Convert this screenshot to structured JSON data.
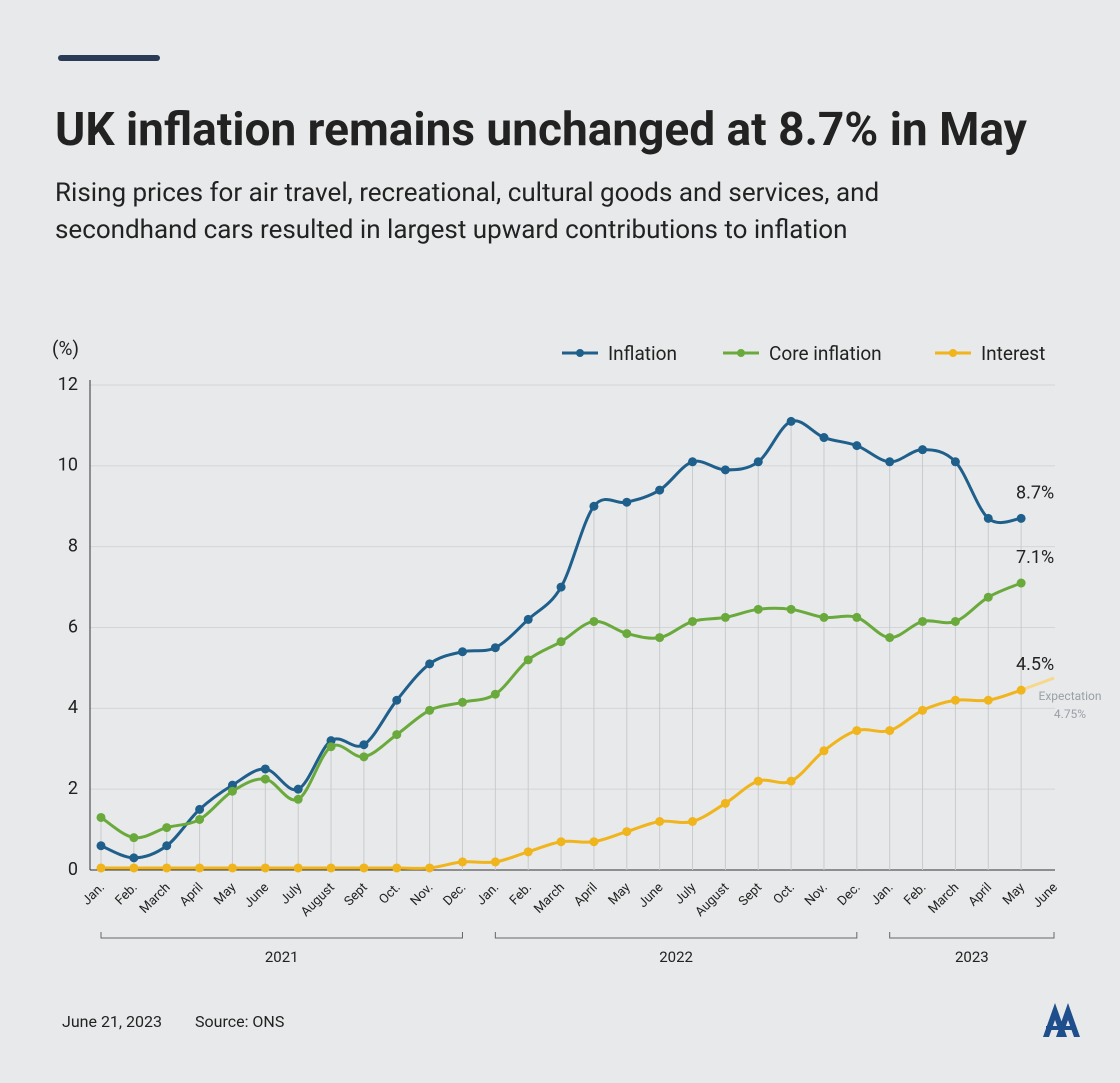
{
  "chart_data": {
    "type": "line",
    "title": "UK inflation remains unchanged at 8.7% in May",
    "subtitle": [
      "Rising prices for air travel, recreational, cultural goods and services, and",
      "secondhand cars resulted in largest upward contributions to inflation"
    ],
    "y_label": "(%)",
    "categories": [
      "Jan.",
      "Feb.",
      "March",
      "April",
      "May",
      "June",
      "July",
      "August",
      "Sept",
      "Oct.",
      "Nov.",
      "Dec.",
      "Jan.",
      "Feb.",
      "March",
      "April",
      "May",
      "June",
      "July",
      "August",
      "Sept",
      "Oct.",
      "Nov.",
      "Dec.",
      "Jan.",
      "Feb.",
      "March",
      "April",
      "May",
      "June"
    ],
    "x_groups": [
      "2021",
      "2022",
      "2023"
    ],
    "series": [
      {
        "name": "Inflation",
        "color": "#1f5f8b",
        "values": [
          0.6,
          0.3,
          0.6,
          1.5,
          2.1,
          2.5,
          2.0,
          3.2,
          3.1,
          4.2,
          5.1,
          5.4,
          5.5,
          6.2,
          7.0,
          9.0,
          9.1,
          9.4,
          10.1,
          9.9,
          10.1,
          11.1,
          10.7,
          10.5,
          10.1,
          10.4,
          10.1,
          8.7,
          8.7,
          null
        ],
        "value_labels": [
          null,
          null,
          null,
          null,
          null,
          null,
          null,
          null,
          null,
          null,
          null,
          null,
          null,
          null,
          null,
          null,
          null,
          null,
          null,
          null,
          null,
          null,
          null,
          null,
          null,
          null,
          null,
          null,
          "8.7%",
          null
        ]
      },
      {
        "name": "Core inflation",
        "color": "#6aaa3c",
        "values": [
          1.3,
          0.8,
          1.05,
          1.25,
          1.95,
          2.25,
          1.75,
          3.05,
          2.8,
          3.35,
          3.95,
          4.15,
          4.35,
          5.2,
          5.65,
          6.15,
          5.85,
          5.75,
          6.15,
          6.25,
          6.45,
          6.45,
          6.25,
          6.25,
          5.75,
          6.15,
          6.15,
          6.75,
          7.1,
          null
        ],
        "value_labels": [
          null,
          null,
          null,
          null,
          null,
          null,
          null,
          null,
          null,
          null,
          null,
          null,
          null,
          null,
          null,
          null,
          null,
          null,
          null,
          null,
          null,
          null,
          null,
          null,
          null,
          null,
          null,
          null,
          "7.1%",
          null
        ]
      },
      {
        "name": "Interest",
        "color": "#f0b41c",
        "values": [
          0.05,
          0.05,
          0.05,
          0.05,
          0.05,
          0.05,
          0.05,
          0.05,
          0.05,
          0.05,
          0.05,
          0.2,
          0.2,
          0.45,
          0.7,
          0.7,
          0.95,
          1.2,
          1.2,
          1.65,
          2.2,
          2.2,
          2.95,
          3.45,
          3.45,
          3.95,
          4.2,
          4.2,
          4.45,
          null
        ],
        "value_labels": [
          null,
          null,
          null,
          null,
          null,
          null,
          null,
          null,
          null,
          null,
          null,
          null,
          null,
          null,
          null,
          null,
          null,
          null,
          null,
          null,
          null,
          null,
          null,
          null,
          null,
          null,
          null,
          null,
          "4.5%",
          null
        ]
      }
    ],
    "expectation": {
      "label": "Expectation",
      "value": 4.75,
      "value_label": "4.75%",
      "color": "#f5d88a"
    },
    "ylim": [
      0,
      12
    ],
    "yticks": [
      0,
      2,
      4,
      6,
      8,
      10,
      12
    ],
    "grid": true,
    "legend": "top-right",
    "footer": {
      "date": "June 21, 2023",
      "source": "Source: ONS"
    }
  }
}
